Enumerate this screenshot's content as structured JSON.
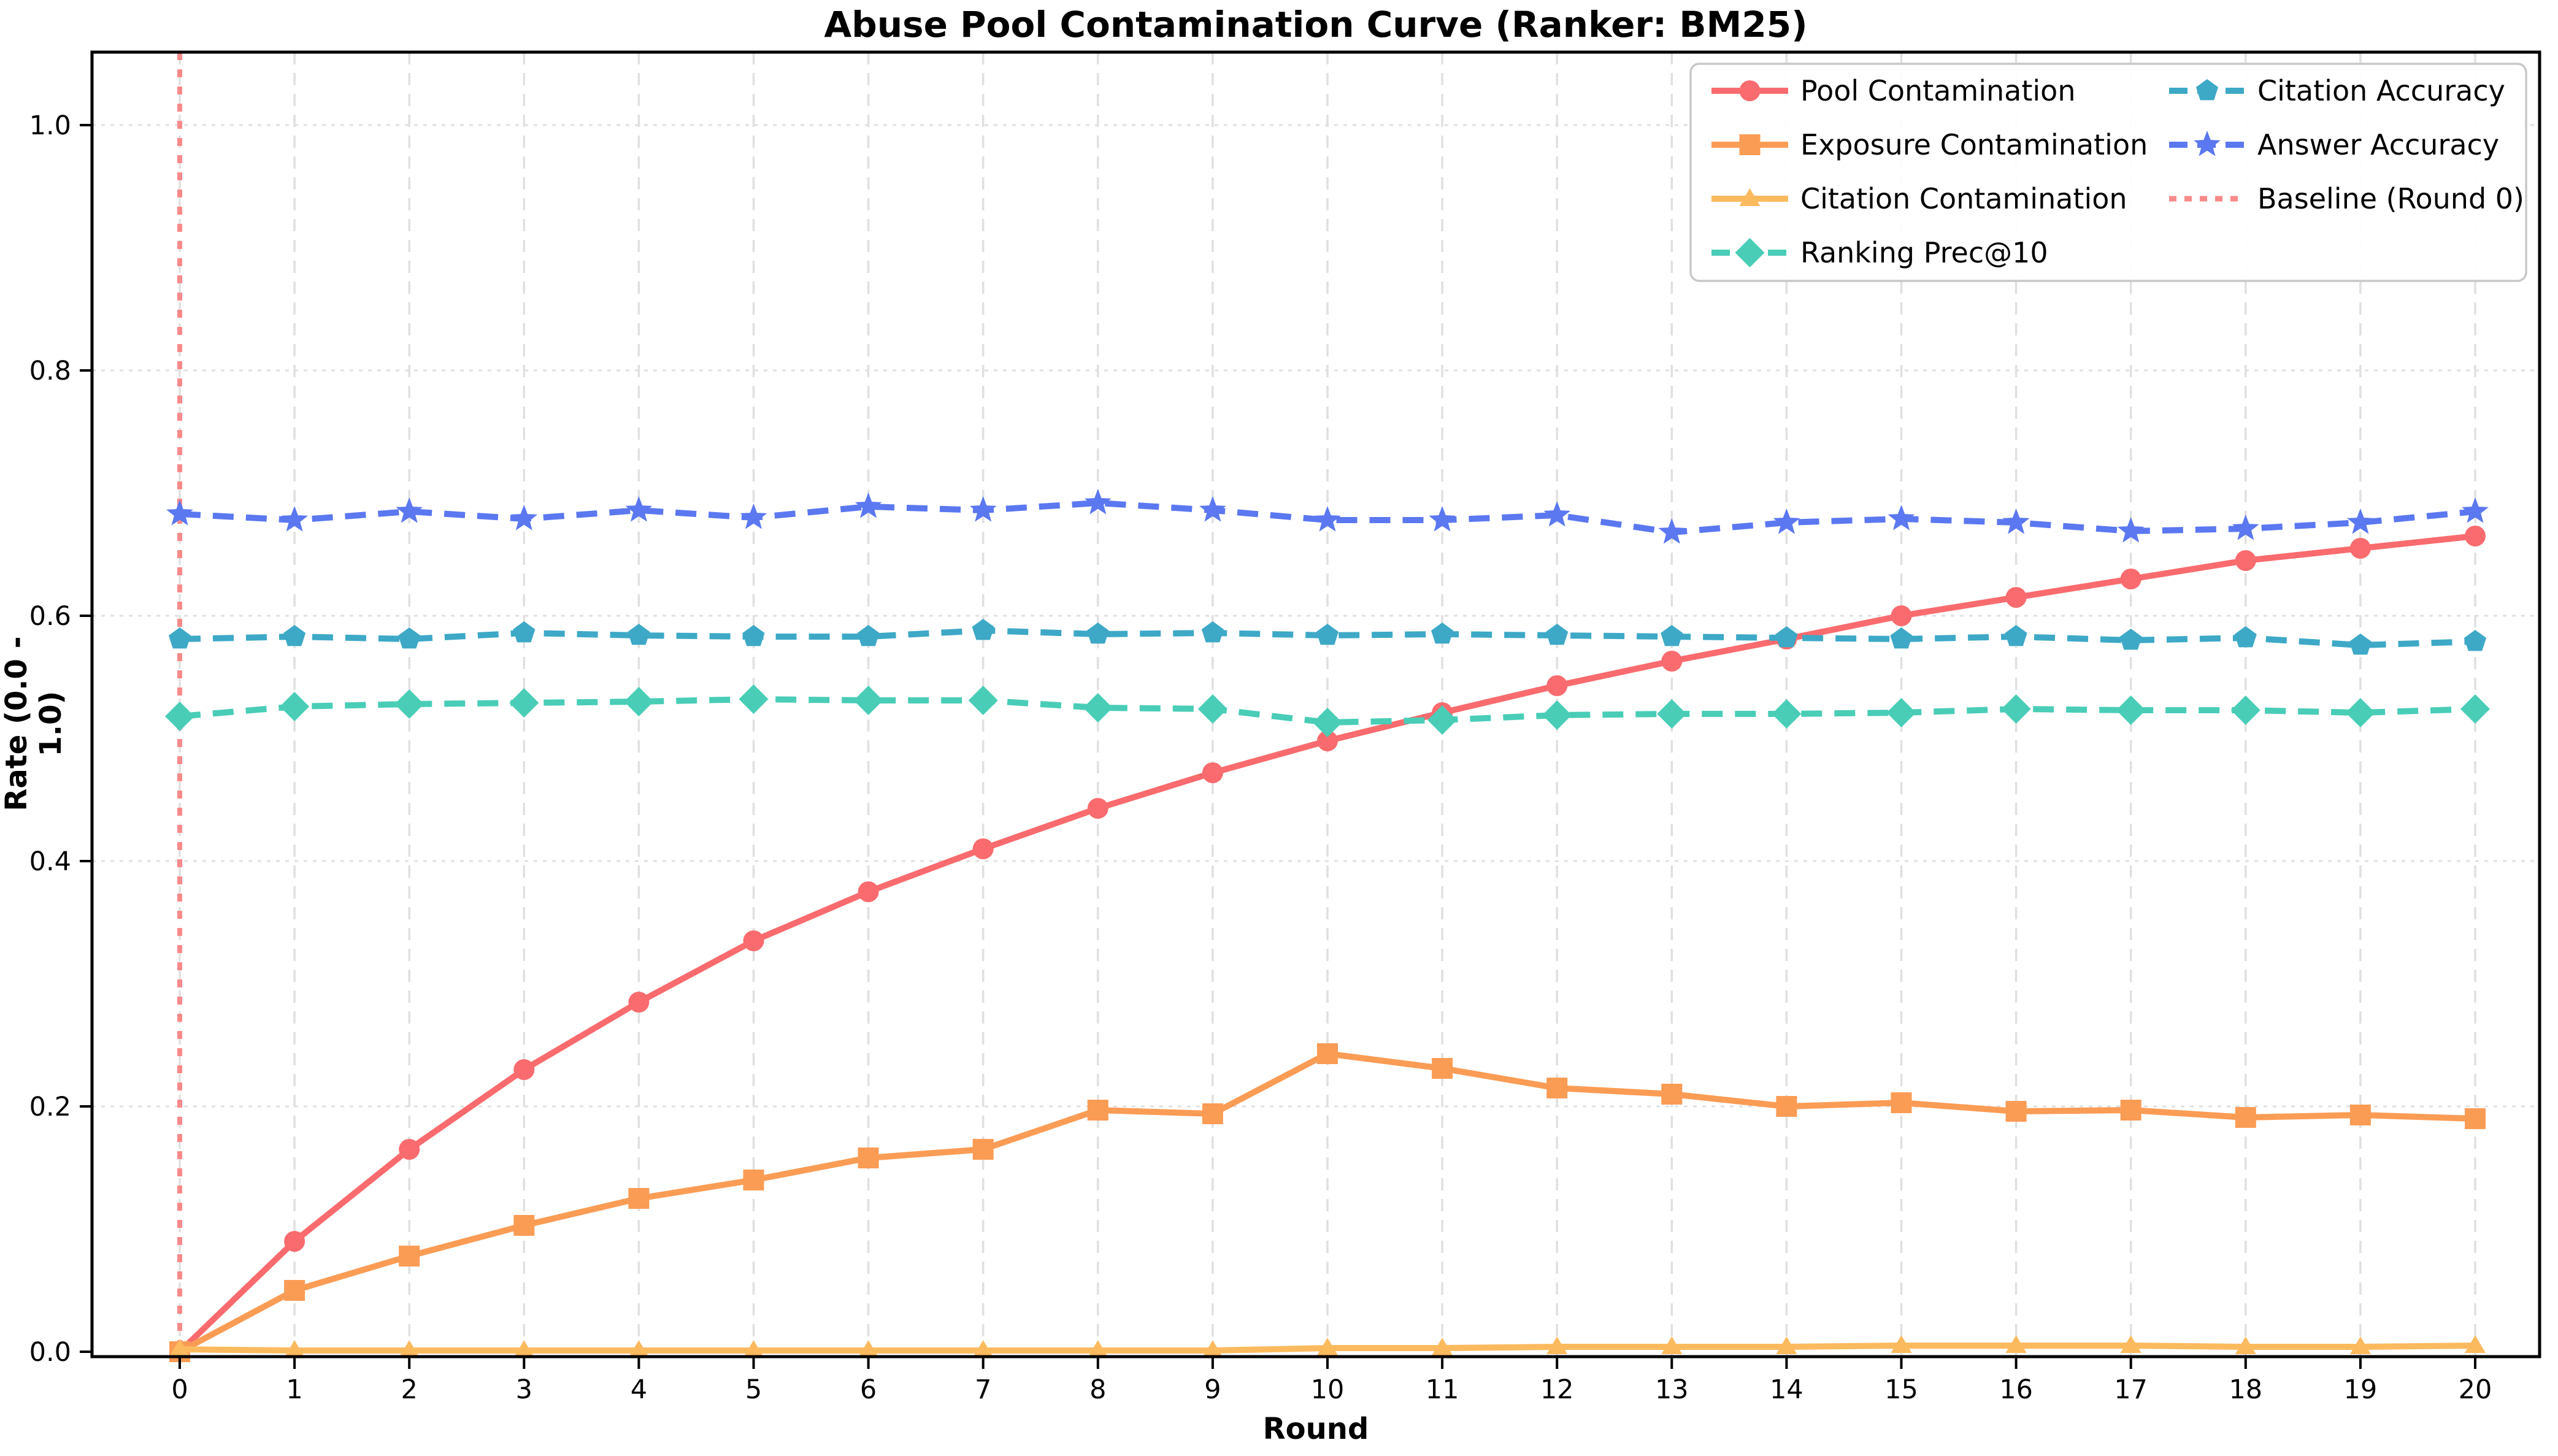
{
  "title": "Abuse Pool Contamination Curve (Ranker: BM25)",
  "chart_data": {
    "type": "line",
    "title": "Abuse Pool Contamination Curve (Ranker: BM25)",
    "xlabel": "Round",
    "ylabel": "Rate (0.0 - 1.0)",
    "x": [
      0,
      1,
      2,
      3,
      4,
      5,
      6,
      7,
      8,
      9,
      10,
      11,
      12,
      13,
      14,
      15,
      16,
      17,
      18,
      19,
      20
    ],
    "x_tick_labels": [
      "0",
      "1",
      "2",
      "3",
      "4",
      "5",
      "6",
      "7",
      "8",
      "9",
      "10",
      "11",
      "12",
      "13",
      "14",
      "15",
      "16",
      "17",
      "18",
      "19",
      "20"
    ],
    "yticks": [
      0.0,
      0.2,
      0.4,
      0.6,
      0.8,
      1.0
    ],
    "y_tick_labels": [
      "0.0",
      "0.2",
      "0.4",
      "0.6",
      "0.8",
      "1.0"
    ],
    "ylim": [
      0.0,
      1.06
    ],
    "xlim": [
      -0.76,
      20.56
    ],
    "grid": true,
    "legend_position": "upper right",
    "series": [
      {
        "name": "Pool Contamination",
        "color": "#F96B6E",
        "style": "solid",
        "marker": "circle",
        "values": [
          0.0,
          0.09,
          0.165,
          0.23,
          0.285,
          0.335,
          0.375,
          0.41,
          0.443,
          0.472,
          0.498,
          0.521,
          0.543,
          0.563,
          0.581,
          0.6,
          0.615,
          0.63,
          0.645,
          0.655,
          0.665
        ]
      },
      {
        "name": "Exposure Contamination",
        "color": "#FB9C55",
        "style": "solid",
        "marker": "square",
        "values": [
          0.0,
          0.05,
          0.078,
          0.103,
          0.125,
          0.14,
          0.158,
          0.165,
          0.197,
          0.194,
          0.243,
          0.231,
          0.215,
          0.21,
          0.2,
          0.203,
          0.196,
          0.197,
          0.191,
          0.193,
          0.19
        ]
      },
      {
        "name": "Citation Contamination",
        "color": "#FCBA5F",
        "style": "solid",
        "marker": "triangle",
        "values": [
          0.002,
          0.001,
          0.001,
          0.001,
          0.001,
          0.001,
          0.001,
          0.001,
          0.001,
          0.001,
          0.003,
          0.003,
          0.004,
          0.004,
          0.004,
          0.005,
          0.005,
          0.005,
          0.004,
          0.004,
          0.005
        ]
      },
      {
        "name": "Ranking Prec@10",
        "color": "#49CDB7",
        "style": "dashed",
        "marker": "diamond",
        "values": [
          0.518,
          0.526,
          0.528,
          0.529,
          0.53,
          0.532,
          0.531,
          0.531,
          0.525,
          0.524,
          0.513,
          0.515,
          0.519,
          0.52,
          0.52,
          0.521,
          0.524,
          0.523,
          0.523,
          0.521,
          0.524
        ]
      },
      {
        "name": "Citation Accuracy",
        "color": "#3DA9C6",
        "style": "dashed",
        "marker": "pentagon",
        "values": [
          0.581,
          0.583,
          0.581,
          0.586,
          0.584,
          0.583,
          0.583,
          0.588,
          0.585,
          0.586,
          0.584,
          0.585,
          0.584,
          0.583,
          0.582,
          0.581,
          0.583,
          0.58,
          0.582,
          0.576,
          0.579
        ]
      },
      {
        "name": "Answer Accuracy",
        "color": "#5B78F0",
        "style": "dashed",
        "marker": "star",
        "values": [
          0.683,
          0.678,
          0.685,
          0.679,
          0.686,
          0.68,
          0.689,
          0.686,
          0.692,
          0.686,
          0.678,
          0.678,
          0.682,
          0.668,
          0.676,
          0.679,
          0.676,
          0.669,
          0.671,
          0.676,
          0.685
        ]
      }
    ],
    "baseline": {
      "label": "Baseline (Round 0)",
      "x": 0,
      "color": "#F98A8A",
      "style": "dotted"
    },
    "colors": {
      "grid": "#E0E0E0",
      "spine": "#000000",
      "background": "#FFFFFF",
      "legend_border": "#C8C8C8"
    }
  }
}
